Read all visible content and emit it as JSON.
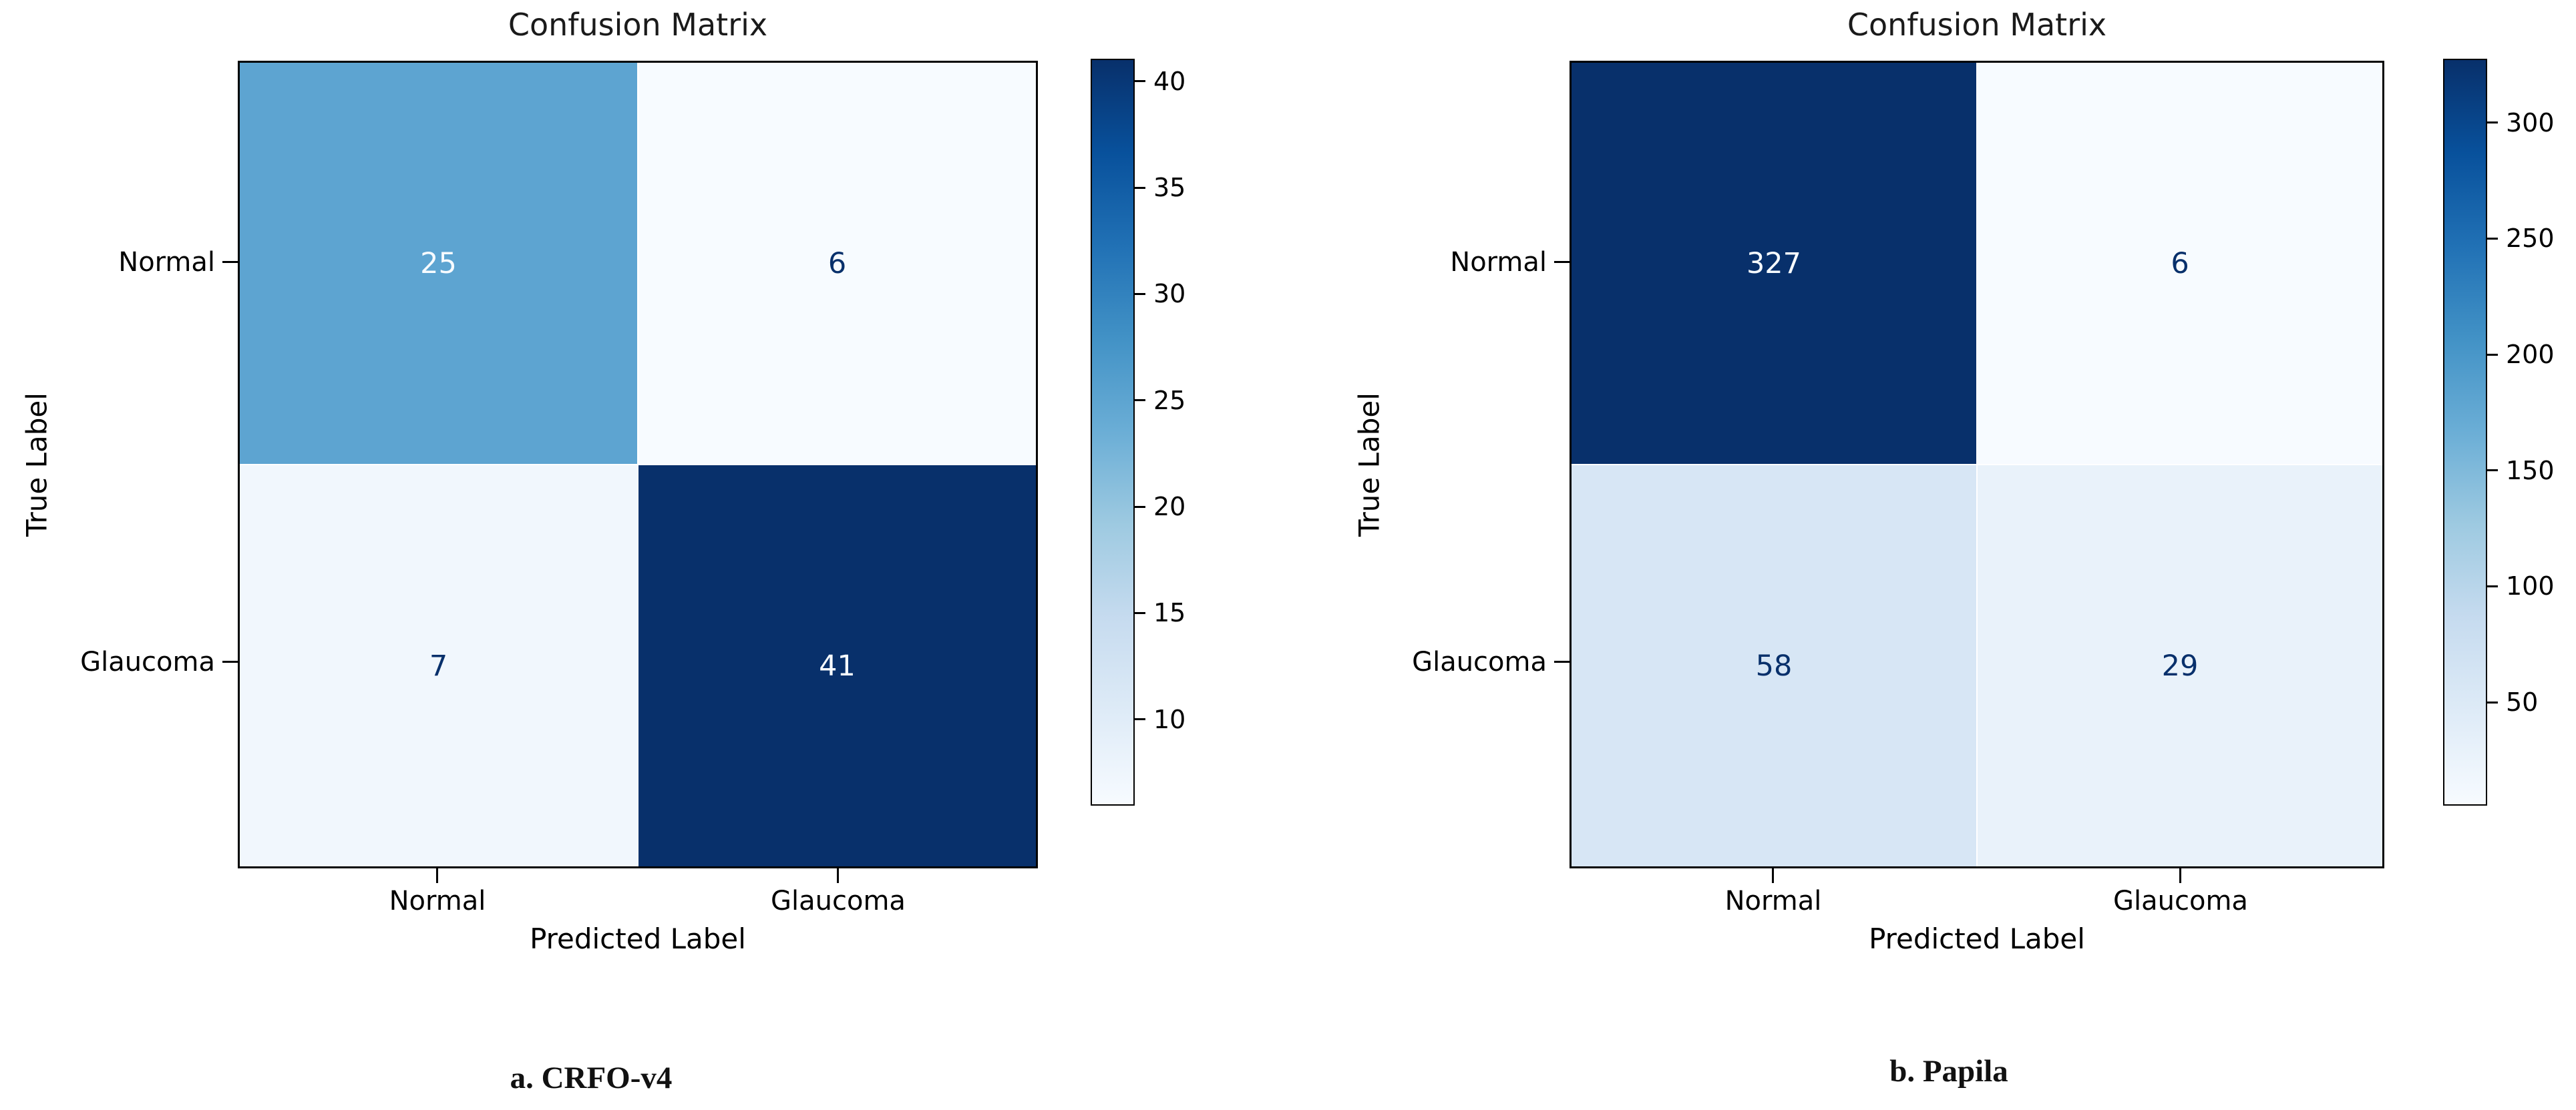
{
  "figure": {
    "background": "#ffffff"
  },
  "colors": {
    "blues_colormap_stops": [
      "#f7fbff",
      "#deebf7",
      "#c6dbef",
      "#9ecae1",
      "#6baed6",
      "#4292c6",
      "#2171b5",
      "#08519c",
      "#08306b"
    ],
    "cell_text_dark": "#08306b",
    "cell_text_light": "#f7fbff",
    "axis_line": "#000000",
    "title_text": "#1a1a1a"
  },
  "chart_data": [
    {
      "type": "heatmap",
      "title": "Confusion Matrix",
      "xlabel": "Predicted Label",
      "ylabel": "True Label",
      "x_tick_labels": [
        "Normal",
        "Glaucoma"
      ],
      "y_tick_labels": [
        "Normal",
        "Glaucoma"
      ],
      "matrix": [
        [
          25,
          6
        ],
        [
          7,
          41
        ]
      ],
      "vmin": 6,
      "vmax": 41,
      "colorbar_ticks": [
        10,
        15,
        20,
        25,
        30,
        35,
        40
      ],
      "colormap": "Blues",
      "legend_position": "right-colorbar",
      "caption": "a. CRFO-v4"
    },
    {
      "type": "heatmap",
      "title": "Confusion Matrix",
      "xlabel": "Predicted Label",
      "ylabel": "True Label",
      "x_tick_labels": [
        "Normal",
        "Glaucoma"
      ],
      "y_tick_labels": [
        "Normal",
        "Glaucoma"
      ],
      "matrix": [
        [
          327,
          6
        ],
        [
          58,
          29
        ]
      ],
      "vmin": 6,
      "vmax": 327,
      "colorbar_ticks": [
        50,
        100,
        150,
        200,
        250,
        300
      ],
      "colormap": "Blues",
      "legend_position": "right-colorbar",
      "caption": "b. Papila"
    }
  ]
}
